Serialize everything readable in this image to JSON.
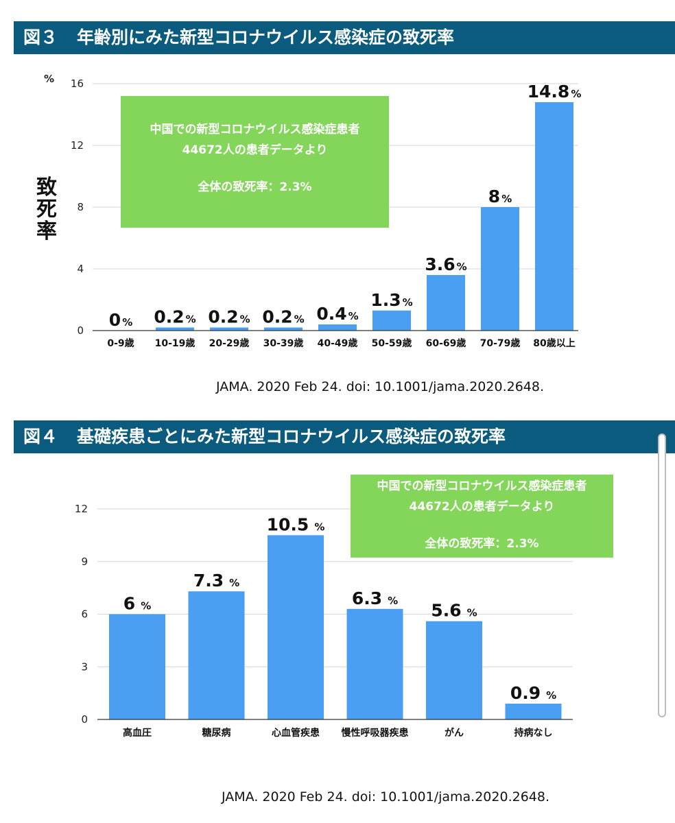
{
  "figure3": {
    "number": "図３",
    "title": "年齢別にみた新型コロナウイルス感染症の致死率",
    "unit": "%",
    "ylabel_chars": [
      "致",
      "死",
      "率"
    ],
    "note_lines": [
      "中国での新型コロナウイルス感染症患者",
      "44672人の患者データより",
      "全体の致死率：2.3%"
    ],
    "citation": "JAMA. 2020 Feb 24. doi: 10.1001/jama.2020.2648."
  },
  "figure4": {
    "number": "図４",
    "title": "基礎疾患ごとにみた新型コロナウイルス感染症の致死率",
    "note_lines": [
      "中国での新型コロナウイルス感染症患者",
      "44672人の患者データより",
      "全体の致死率：2.3%"
    ],
    "citation": "JAMA. 2020 Feb 24. doi: 10.1001/jama.2020.2648."
  },
  "colors": {
    "header": "#0b5b7f",
    "bar": "#4a9ff2",
    "note": "#84d65a"
  },
  "chart_data": [
    {
      "type": "bar",
      "title": "年齢別にみた新型コロナウイルス感染症の致死率",
      "ylabel": "致死率",
      "unit_label": "%",
      "categories": [
        "0-9歳",
        "10-19歳",
        "20-29歳",
        "30-39歳",
        "40-49歳",
        "50-59歳",
        "60-69歳",
        "70-79歳",
        "80歳以上"
      ],
      "values": [
        0,
        0.2,
        0.2,
        0.2,
        0.4,
        1.3,
        3.6,
        8,
        14.8
      ],
      "value_labels": [
        "0",
        "0.2",
        "0.2",
        "0.2",
        "0.4",
        "1.3",
        "3.6",
        "8",
        "14.8"
      ],
      "ylim": [
        0,
        16
      ],
      "yticks": [
        0,
        4,
        8,
        12,
        16
      ],
      "grid": true
    },
    {
      "type": "bar",
      "title": "基礎疾患ごとにみた新型コロナウイルス感染症の致死率",
      "categories": [
        "高血圧",
        "糖尿病",
        "心血管疾患",
        "慢性呼吸器疾患",
        "がん",
        "持病なし"
      ],
      "values": [
        6,
        7.3,
        10.5,
        6.3,
        5.6,
        0.9
      ],
      "value_labels": [
        "6",
        "7.3",
        "10.5",
        "6.3",
        "5.6",
        "0.9"
      ],
      "ylim": [
        0,
        12
      ],
      "yticks": [
        0,
        3,
        6,
        9,
        12
      ],
      "grid": true
    }
  ]
}
